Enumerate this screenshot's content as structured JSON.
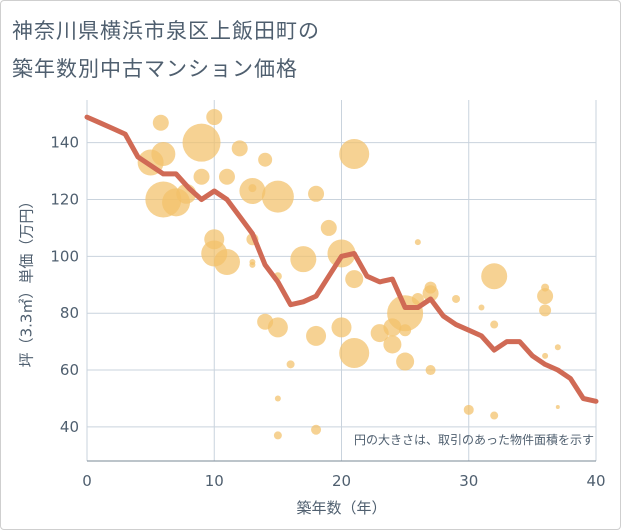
{
  "chart_data": {
    "type": "scatter",
    "title_line1": "神奈川県横浜市泉区上飯田町の",
    "title_line2": "築年数別中古マンション価格",
    "xlabel": "築年数（年）",
    "ylabel": "坪（3.3㎡）単価（万円）",
    "note": "円の大きさは、取引のあった物件面積を示す",
    "xlim": [
      0,
      40
    ],
    "ylim": [
      28,
      155
    ],
    "xticks": [
      0,
      10,
      20,
      30,
      40
    ],
    "yticks": [
      40,
      60,
      80,
      100,
      120,
      140
    ],
    "grid": true,
    "colors": {
      "bubble": "#f2c06a",
      "line": "#d06a55",
      "grid": "#c9d3dd",
      "text": "#4f5f6f"
    },
    "bubbles": [
      {
        "x": 5,
        "y": 133,
        "size": 13
      },
      {
        "x": 5.8,
        "y": 147,
        "size": 8
      },
      {
        "x": 6,
        "y": 136,
        "size": 12
      },
      {
        "x": 6,
        "y": 120,
        "size": 18
      },
      {
        "x": 7,
        "y": 119,
        "size": 14
      },
      {
        "x": 7.8,
        "y": 122,
        "size": 10
      },
      {
        "x": 9,
        "y": 140,
        "size": 19
      },
      {
        "x": 9,
        "y": 128,
        "size": 8
      },
      {
        "x": 10,
        "y": 149,
        "size": 8
      },
      {
        "x": 10,
        "y": 106,
        "size": 10
      },
      {
        "x": 10,
        "y": 101,
        "size": 13
      },
      {
        "x": 11,
        "y": 98,
        "size": 13
      },
      {
        "x": 11,
        "y": 128,
        "size": 8
      },
      {
        "x": 12,
        "y": 138,
        "size": 8
      },
      {
        "x": 13,
        "y": 123,
        "size": 13
      },
      {
        "x": 13,
        "y": 124,
        "size": 4
      },
      {
        "x": 13,
        "y": 106,
        "size": 6
      },
      {
        "x": 13,
        "y": 97,
        "size": 3
      },
      {
        "x": 13,
        "y": 98,
        "size": 3
      },
      {
        "x": 14,
        "y": 134,
        "size": 7
      },
      {
        "x": 15,
        "y": 121,
        "size": 16
      },
      {
        "x": 14,
        "y": 77,
        "size": 8
      },
      {
        "x": 15,
        "y": 75,
        "size": 10
      },
      {
        "x": 15,
        "y": 93,
        "size": 4
      },
      {
        "x": 15,
        "y": 50,
        "size": 3
      },
      {
        "x": 15,
        "y": 37,
        "size": 4
      },
      {
        "x": 16,
        "y": 62,
        "size": 4
      },
      {
        "x": 17,
        "y": 99,
        "size": 13
      },
      {
        "x": 18,
        "y": 122,
        "size": 8
      },
      {
        "x": 18,
        "y": 72,
        "size": 10
      },
      {
        "x": 18,
        "y": 39,
        "size": 5
      },
      {
        "x": 19,
        "y": 110,
        "size": 8
      },
      {
        "x": 20,
        "y": 101,
        "size": 14
      },
      {
        "x": 20,
        "y": 75,
        "size": 10
      },
      {
        "x": 21,
        "y": 136,
        "size": 15
      },
      {
        "x": 21,
        "y": 92,
        "size": 9
      },
      {
        "x": 21,
        "y": 66,
        "size": 15
      },
      {
        "x": 23,
        "y": 73,
        "size": 9
      },
      {
        "x": 24,
        "y": 75,
        "size": 9
      },
      {
        "x": 24,
        "y": 69,
        "size": 9
      },
      {
        "x": 25,
        "y": 80,
        "size": 18
      },
      {
        "x": 25,
        "y": 74,
        "size": 6
      },
      {
        "x": 25,
        "y": 63,
        "size": 9
      },
      {
        "x": 26,
        "y": 85,
        "size": 6
      },
      {
        "x": 26,
        "y": 105,
        "size": 3
      },
      {
        "x": 27,
        "y": 89,
        "size": 6
      },
      {
        "x": 27,
        "y": 87,
        "size": 8
      },
      {
        "x": 27,
        "y": 60,
        "size": 5
      },
      {
        "x": 29,
        "y": 85,
        "size": 4
      },
      {
        "x": 30,
        "y": 46,
        "size": 5
      },
      {
        "x": 31,
        "y": 82,
        "size": 3
      },
      {
        "x": 32,
        "y": 93,
        "size": 13
      },
      {
        "x": 32,
        "y": 76,
        "size": 4
      },
      {
        "x": 32,
        "y": 44,
        "size": 4
      },
      {
        "x": 36,
        "y": 86,
        "size": 8
      },
      {
        "x": 36,
        "y": 89,
        "size": 4
      },
      {
        "x": 36,
        "y": 81,
        "size": 6
      },
      {
        "x": 36,
        "y": 65,
        "size": 3
      },
      {
        "x": 37,
        "y": 68,
        "size": 3
      },
      {
        "x": 37,
        "y": 47,
        "size": 2
      }
    ],
    "trend": [
      [
        0,
        149
      ],
      [
        1,
        147
      ],
      [
        2,
        145
      ],
      [
        3,
        143
      ],
      [
        4,
        135
      ],
      [
        5,
        132
      ],
      [
        6,
        129
      ],
      [
        7,
        129
      ],
      [
        8,
        124
      ],
      [
        9,
        120
      ],
      [
        10,
        123
      ],
      [
        11,
        120
      ],
      [
        12,
        114
      ],
      [
        13,
        108
      ],
      [
        14,
        97
      ],
      [
        15,
        91
      ],
      [
        16,
        83
      ],
      [
        17,
        84
      ],
      [
        18,
        86
      ],
      [
        19,
        93
      ],
      [
        20,
        100
      ],
      [
        21,
        101
      ],
      [
        22,
        93
      ],
      [
        23,
        91
      ],
      [
        24,
        92
      ],
      [
        25,
        82
      ],
      [
        26,
        82
      ],
      [
        27,
        85
      ],
      [
        28,
        79
      ],
      [
        29,
        76
      ],
      [
        30,
        74
      ],
      [
        31,
        72
      ],
      [
        32,
        67
      ],
      [
        33,
        70
      ],
      [
        34,
        70
      ],
      [
        35,
        65
      ],
      [
        36,
        62
      ],
      [
        37,
        60
      ],
      [
        38,
        57
      ],
      [
        39,
        50
      ],
      [
        40,
        49
      ]
    ]
  }
}
